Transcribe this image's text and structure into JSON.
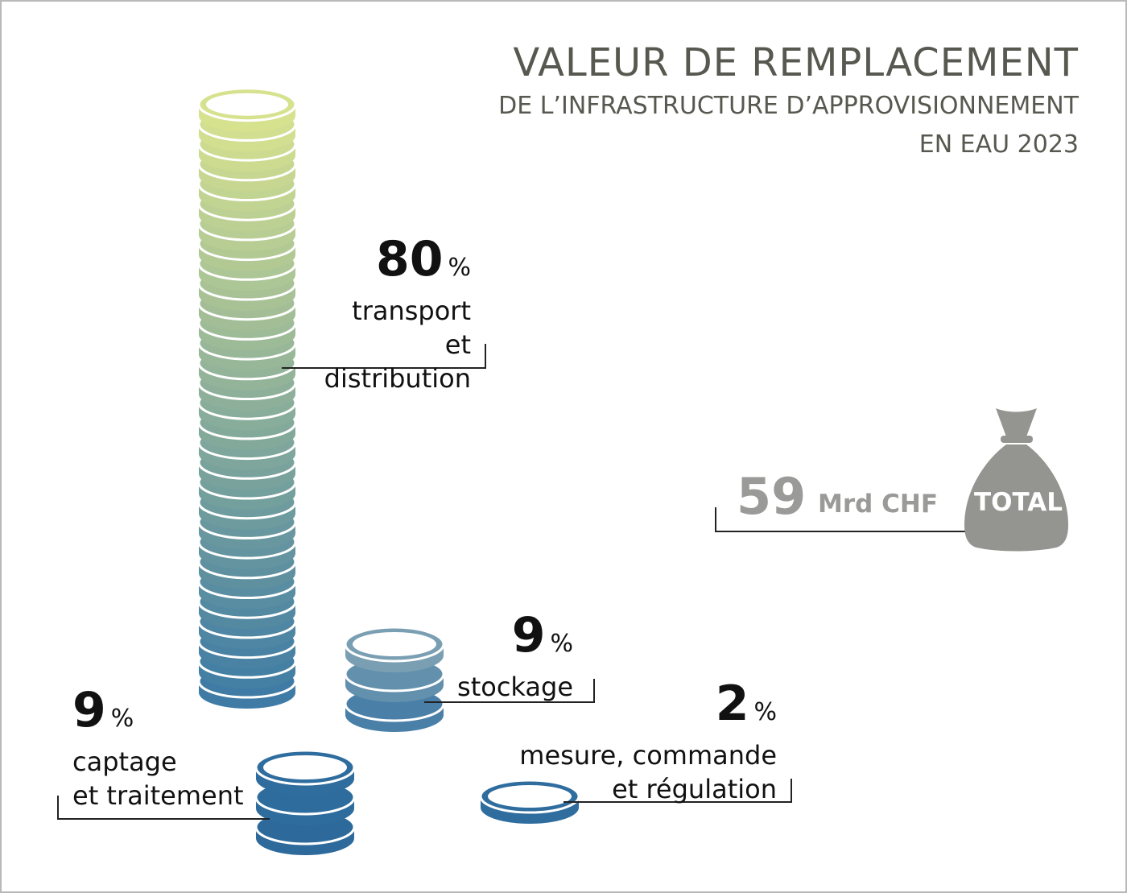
{
  "header": {
    "title": "VALEUR DE REMPLACEMENT",
    "subtitle_line1": "DE L’INFRASTRUCTURE D’APPROVISIONNEMENT",
    "subtitle_line2": "EN EAU 2023"
  },
  "total": {
    "value": "59",
    "unit": "Mrd CHF",
    "bag_label": "TOTAL"
  },
  "colors": {
    "stack_top": "#d7e28f",
    "stack_mid": "#8fb0a7",
    "stack_bottom": "#3f7ba5",
    "dark_blue": "#2f6d9f",
    "bag": "#949490",
    "text_gray": "#57584f"
  },
  "chart_data": {
    "type": "bar",
    "title": "VALEUR DE REMPLACEMENT",
    "subtitle": "DE L’INFRASTRUCTURE D’APPROVISIONNEMENT EN EAU 2023",
    "unit": "%",
    "total": "59 Mrd CHF",
    "categories": [
      "transport et distribution",
      "stockage",
      "captage et traitement",
      "mesure, commande et régulation"
    ],
    "values": [
      80,
      9,
      9,
      2
    ],
    "labels": [
      {
        "value": "80",
        "symbol": "%",
        "line1": "transport et",
        "line2": "distribution"
      },
      {
        "value": "9",
        "symbol": "%",
        "line1": "stockage",
        "line2": ""
      },
      {
        "value": "9",
        "symbol": "%",
        "line1": "captage",
        "line2": "et traitement"
      },
      {
        "value": "2",
        "symbol": "%",
        "line1": "mesure, commande",
        "line2": "et régulation"
      }
    ]
  }
}
